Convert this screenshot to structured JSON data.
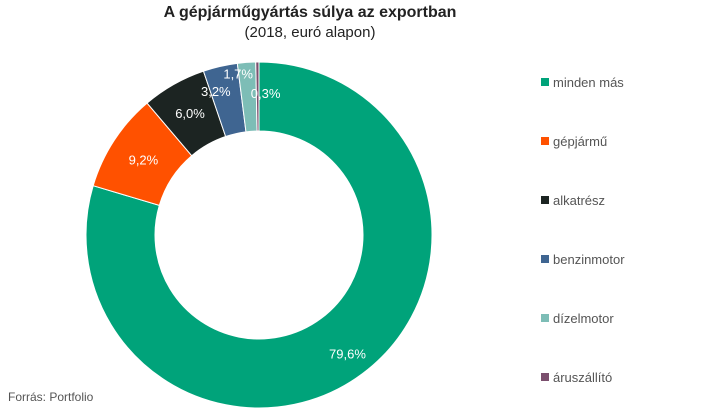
{
  "header": {
    "title": "A gépjárműgyártás súlya az exportban",
    "subtitle": "(2018, euró alapon)"
  },
  "footer": {
    "source": "Forrás:  Portfolio"
  },
  "chart_data": {
    "type": "pie",
    "donut": true,
    "legend_position": "right",
    "slices": [
      {
        "label": "minden más",
        "value": 79.6,
        "display": "79,6%",
        "color": "#00a37a"
      },
      {
        "label": "gépjármű",
        "value": 9.2,
        "display": "9,2%",
        "color": "#ff5100"
      },
      {
        "label": "alkatrész",
        "value": 6.0,
        "display": "6,0%",
        "color": "#1c2422"
      },
      {
        "label": "benzinmotor",
        "value": 3.2,
        "display": "3,2%",
        "color": "#3f6591"
      },
      {
        "label": "dízelmotor",
        "value": 1.7,
        "display": "1,7%",
        "color": "#7dbdb6"
      },
      {
        "label": "áruszállító",
        "value": 0.3,
        "display": "0,3%",
        "color": "#7b4f6e"
      }
    ]
  }
}
